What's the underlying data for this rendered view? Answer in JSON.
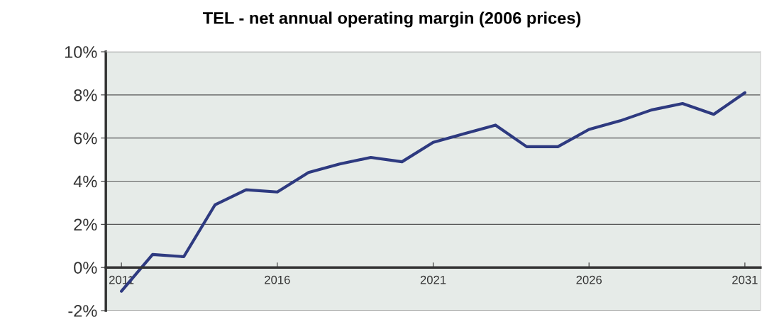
{
  "chart_data": {
    "type": "line",
    "title": "TEL - net annual operating margin (2006 prices)",
    "x": [
      2011,
      2012,
      2013,
      2014,
      2015,
      2016,
      2017,
      2018,
      2019,
      2020,
      2021,
      2022,
      2023,
      2024,
      2025,
      2026,
      2027,
      2028,
      2029,
      2030,
      2031
    ],
    "series": [
      {
        "color": "#2e3a80",
        "values": [
          -1.1,
          0.6,
          0.5,
          2.9,
          3.6,
          3.5,
          4.4,
          4.8,
          5.1,
          4.9,
          5.8,
          6.2,
          6.6,
          5.6,
          5.6,
          6.4,
          6.8,
          7.3,
          7.6,
          7.1,
          8.1
        ]
      }
    ],
    "xlim": [
      2010.5,
      2031.5
    ],
    "xticks": [
      2011,
      2016,
      2021,
      2026,
      2031
    ],
    "ylim": [
      -2,
      10
    ],
    "yticks": [
      {
        "value": -2,
        "label": "-2%"
      },
      {
        "value": 0,
        "label": "0%"
      },
      {
        "value": 2,
        "label": "2%"
      },
      {
        "value": 4,
        "label": "4%"
      },
      {
        "value": 6,
        "label": "6%"
      },
      {
        "value": 8,
        "label": "8%"
      },
      {
        "value": 10,
        "label": "10%"
      }
    ],
    "grid": "y",
    "legend": false,
    "marker": "none",
    "line_style": "solid"
  }
}
